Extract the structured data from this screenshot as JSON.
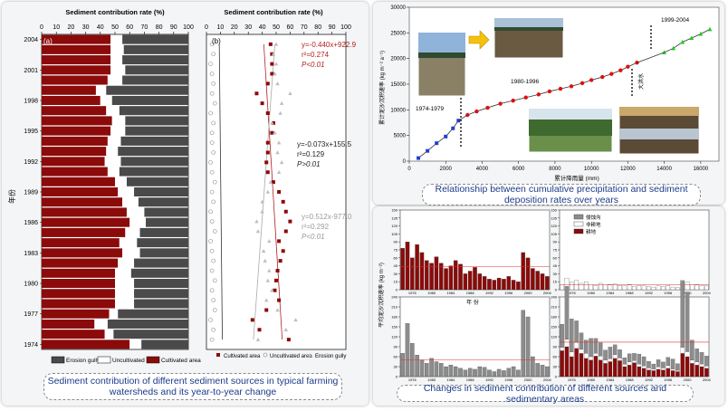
{
  "left_figure": {
    "caption": "Sediment contribution of different sediment sources in typical farming watersheds and its year-to-year change",
    "panel_a": {
      "label": "(a)",
      "x_title": "Sediment contribution rate (%)"
    },
    "panel_b": {
      "label": "(b)",
      "x_title": "Sediment contribution rate (%)"
    },
    "y_axis_label": "年份",
    "legend_a": [
      "Erosion gully",
      "Uncultivated area",
      "Cultivated area"
    ],
    "legend_b": [
      "Cultivated area",
      "Uncultivated area",
      "Erosion gully"
    ],
    "eq_cultivated": [
      "y=-0.440x+922.9",
      "r²=0.274",
      "P<0.01"
    ],
    "eq_uncultivated": [
      "y=-0.073x+155.5",
      "r²=0.129",
      "P>0.01"
    ],
    "eq_gully": [
      "y=0.512x-977.0",
      "r²=0.292",
      "P<0.01"
    ]
  },
  "top_right_figure": {
    "caption": "Relationship between cumulative precipitation and sediment deposition rates over years",
    "period_labels": [
      "1974-1979",
      "1980-1996",
      "1999-2004"
    ],
    "x_axis_label": "累计降雨量 (mm)",
    "y_axis_label": "累计泥沙沉积速率 (kg m⁻² a⁻¹)",
    "side_label": "大洪水"
  },
  "bottom_right_figure": {
    "caption": "Changes in sediment contribution of different sources and sedimentary areas",
    "x_axis_label": "年 份",
    "y_axis_label": "平均泥沙沉积速率 (kg m⁻²)",
    "legend": [
      "侵蚀沟",
      "非耕地",
      "耕地"
    ]
  },
  "colors": {
    "cultivated": "#8b0a0a",
    "gully": "#4a4a4a",
    "uncultivated": "#ffffff",
    "caption_text": "#1a3a8a",
    "blue_series": "#1f3fd0",
    "red_series": "#e01010",
    "green_series": "#22c422"
  },
  "chart_data": [
    {
      "type": "bar",
      "stacked": true,
      "orientation": "horizontal",
      "title": "",
      "xlabel": "Sediment contribution rate (%)",
      "ylabel": "年份",
      "xlim": [
        0,
        100
      ],
      "x_ticks": [
        0,
        10,
        20,
        30,
        40,
        50,
        60,
        70,
        80,
        90,
        100
      ],
      "categories": [
        "1974",
        "1975",
        "1976",
        "1977",
        "1978",
        "1979",
        "1980",
        "1981",
        "1982",
        "1983",
        "1984",
        "1985",
        "1986",
        "1987",
        "1988",
        "1989",
        "1990",
        "1991",
        "1992",
        "1993",
        "1994",
        "1995",
        "1996",
        "1997",
        "1998",
        "1999",
        "2000",
        "2001",
        "2002",
        "2003",
        "2004"
      ],
      "y_tick_labels": [
        "1974",
        "1977",
        "1980",
        "1983",
        "1986",
        "1989",
        "1992",
        "1995",
        "1998",
        "2001",
        "2004"
      ],
      "series": [
        {
          "name": "Cultivated area",
          "values": [
            60,
            43,
            36,
            46,
            50,
            50,
            50,
            50,
            52,
            55,
            53,
            57,
            60,
            58,
            55,
            52,
            50,
            45,
            43,
            44,
            45,
            47,
            48,
            44,
            40,
            37,
            45,
            47,
            47,
            47,
            47
          ]
        },
        {
          "name": "Uncultivated area",
          "values": [
            8,
            6,
            9,
            6,
            13,
            13,
            13,
            11,
            11,
            12,
            12,
            10,
            11,
            12,
            11,
            11,
            8,
            8,
            11,
            8,
            9,
            10,
            9,
            9,
            8,
            7,
            10,
            10,
            8,
            9,
            8
          ]
        },
        {
          "name": "Erosion gully",
          "values": [
            32,
            51,
            55,
            48,
            37,
            37,
            37,
            39,
            37,
            33,
            35,
            33,
            29,
            30,
            34,
            37,
            42,
            47,
            46,
            48,
            46,
            43,
            43,
            47,
            52,
            56,
            45,
            43,
            45,
            44,
            45
          ]
        }
      ]
    },
    {
      "type": "scatter",
      "title": "",
      "xlabel": "Sediment contribution rate (%)",
      "xlim": [
        0,
        100
      ],
      "ylim": [
        1973,
        2005
      ],
      "series": [
        {
          "name": "Cultivated area",
          "trend": "y=-0.440x+922.9",
          "points": [
            [
              59,
              1974
            ],
            [
              38,
              1975
            ],
            [
              33,
              1976
            ],
            [
              43,
              1977
            ],
            [
              52,
              1978
            ],
            [
              49,
              1979
            ],
            [
              50,
              1980
            ],
            [
              51,
              1981
            ],
            [
              53,
              1982
            ],
            [
              55,
              1983
            ],
            [
              52,
              1984
            ],
            [
              57,
              1985
            ],
            [
              60,
              1986
            ],
            [
              57,
              1987
            ],
            [
              55,
              1988
            ],
            [
              52,
              1989
            ],
            [
              48,
              1990
            ],
            [
              44,
              1991
            ],
            [
              43,
              1992
            ],
            [
              44,
              1993
            ],
            [
              44,
              1994
            ],
            [
              47,
              1995
            ],
            [
              48,
              1996
            ],
            [
              44,
              1997
            ],
            [
              40,
              1998
            ],
            [
              36,
              1999
            ],
            [
              44,
              2000
            ],
            [
              47,
              2001
            ],
            [
              47,
              2002
            ],
            [
              47,
              2003
            ],
            [
              46,
              2004
            ]
          ]
        },
        {
          "name": "Uncultivated area",
          "trend": "y=-0.073x+155.5",
          "points": [
            [
              4,
              1974
            ],
            [
              5,
              1975
            ],
            [
              3,
              1976
            ],
            [
              6,
              1977
            ],
            [
              5,
              1978
            ],
            [
              4,
              1979
            ],
            [
              6,
              1980
            ],
            [
              4,
              1981
            ],
            [
              5,
              1982
            ],
            [
              4,
              1983
            ],
            [
              3,
              1984
            ],
            [
              6,
              1985
            ],
            [
              4,
              1986
            ],
            [
              3,
              1987
            ],
            [
              5,
              1988
            ],
            [
              4,
              1989
            ],
            [
              6,
              1990
            ],
            [
              4,
              1991
            ],
            [
              3,
              1992
            ],
            [
              5,
              1993
            ],
            [
              4,
              1994
            ],
            [
              4,
              1995
            ],
            [
              5,
              1996
            ],
            [
              3,
              1997
            ],
            [
              6,
              1998
            ],
            [
              4,
              1999
            ],
            [
              5,
              2000
            ],
            [
              4,
              2001
            ],
            [
              3,
              2002
            ],
            [
              5,
              2003
            ],
            [
              4,
              2004
            ]
          ]
        },
        {
          "name": "Erosion gully",
          "trend": "y=0.512x-977.0",
          "points": [
            [
              37,
              1974
            ],
            [
              57,
              1975
            ],
            [
              64,
              1976
            ],
            [
              51,
              1977
            ],
            [
              43,
              1978
            ],
            [
              47,
              1979
            ],
            [
              44,
              1980
            ],
            [
              45,
              1981
            ],
            [
              42,
              1982
            ],
            [
              41,
              1983
            ],
            [
              45,
              1984
            ],
            [
              37,
              1985
            ],
            [
              36,
              1986
            ],
            [
              40,
              1987
            ],
            [
              40,
              1988
            ],
            [
              44,
              1989
            ],
            [
              46,
              1990
            ],
            [
              52,
              1991
            ],
            [
              54,
              1992
            ],
            [
              51,
              1993
            ],
            [
              52,
              1994
            ],
            [
              49,
              1995
            ],
            [
              47,
              1996
            ],
            [
              53,
              1997
            ],
            [
              54,
              1998
            ],
            [
              60,
              1999
            ],
            [
              51,
              2000
            ],
            [
              49,
              2001
            ],
            [
              50,
              2002
            ],
            [
              48,
              2003
            ],
            [
              50,
              2004
            ]
          ]
        }
      ]
    },
    {
      "type": "scatter",
      "title": "",
      "xlabel": "累计降雨量 (mm)",
      "ylabel": "累计泥沙沉积速率 (kg m⁻² a⁻¹)",
      "xlim": [
        0,
        17000
      ],
      "ylim": [
        0,
        30000
      ],
      "x_ticks": [
        0,
        2000,
        4000,
        6000,
        8000,
        10000,
        12000,
        14000,
        16000
      ],
      "y_ticks": [
        0,
        5000,
        10000,
        15000,
        20000,
        25000,
        30000
      ],
      "series": [
        {
          "name": "1974-1979",
          "color": "#1f3fd0",
          "points": [
            [
              500,
              600
            ],
            [
              1000,
              2000
            ],
            [
              1500,
              3500
            ],
            [
              2000,
              4800
            ],
            [
              2400,
              6400
            ],
            [
              2700,
              7900
            ]
          ]
        },
        {
          "name": "1980-1996",
          "color": "#e01010",
          "points": [
            [
              3200,
              9000
            ],
            [
              3700,
              9700
            ],
            [
              4300,
              10400
            ],
            [
              5000,
              11200
            ],
            [
              5700,
              11800
            ],
            [
              6400,
              12400
            ],
            [
              7100,
              13000
            ],
            [
              7700,
              13600
            ],
            [
              8300,
              14100
            ],
            [
              8900,
              14600
            ],
            [
              9500,
              15200
            ],
            [
              10000,
              15800
            ],
            [
              10600,
              16400
            ],
            [
              11100,
              17000
            ],
            [
              11600,
              17700
            ],
            [
              12000,
              18400
            ],
            [
              12500,
              19200
            ]
          ]
        },
        {
          "name": "1999-2004",
          "color": "#22c422",
          "points": [
            [
              14000,
              21200
            ],
            [
              14500,
              22000
            ],
            [
              15000,
              23200
            ],
            [
              15500,
              24000
            ],
            [
              16000,
              24800
            ],
            [
              16500,
              25700
            ]
          ]
        }
      ]
    },
    {
      "type": "bar",
      "title": "",
      "xlabel": "年 份",
      "ylabel": "平均泥沙沉积速率 (kg m⁻²)",
      "categories": [
        "1974",
        "1975",
        "1976",
        "1977",
        "1978",
        "1979",
        "1980",
        "1981",
        "1982",
        "1983",
        "1984",
        "1985",
        "1986",
        "1987",
        "1988",
        "1989",
        "1990",
        "1991",
        "1992",
        "1993",
        "1994",
        "1995",
        "1996",
        "1997",
        "1998",
        "1999",
        "2000",
        "2001",
        "2002",
        "2003",
        "2004"
      ],
      "x_tick_labels": [
        "1976",
        "1980",
        "1984",
        "1988",
        "1992",
        "1996",
        "2000",
        "2004"
      ],
      "panels": [
        {
          "name": "耕地",
          "ylim": [
            0,
            150
          ],
          "y_ticks": [
            0,
            15,
            30,
            45,
            60,
            75,
            90,
            105,
            120,
            135,
            150
          ],
          "values": [
            78,
            90,
            60,
            85,
            70,
            55,
            50,
            62,
            50,
            40,
            45,
            55,
            48,
            30,
            35,
            42,
            30,
            25,
            20,
            18,
            22,
            20,
            25,
            18,
            15,
            70,
            60,
            40,
            35,
            30,
            25
          ]
        },
        {
          "name": "非耕地",
          "ylim": [
            0,
            150
          ],
          "y_ticks": [
            0,
            15,
            30,
            45,
            60,
            75,
            90,
            105,
            120,
            135,
            150
          ],
          "values": [
            10,
            22,
            14,
            18,
            12,
            15,
            10,
            8,
            12,
            10,
            9,
            11,
            8,
            7,
            9,
            6,
            8,
            7,
            6,
            5,
            7,
            6,
            8,
            5,
            4,
            18,
            15,
            10,
            9,
            8,
            7
          ]
        },
        {
          "name": "侵蚀沟",
          "ylim": [
            0,
            240
          ],
          "y_ticks": [
            0,
            30,
            60,
            90,
            120,
            150,
            180,
            210,
            240
          ],
          "values": [
            70,
            160,
            100,
            65,
            50,
            40,
            55,
            45,
            40,
            30,
            35,
            30,
            25,
            20,
            25,
            22,
            30,
            28,
            20,
            15,
            22,
            18,
            25,
            30,
            20,
            200,
            180,
            60,
            40,
            35,
            30
          ]
        },
        {
          "name": "total",
          "ylim": [
            0,
            240
          ],
          "y_ticks": [
            0,
            30,
            60,
            90,
            120,
            150,
            180,
            210,
            240
          ],
          "series": [
            {
              "name": "耕地",
              "values": [
                78,
                90,
                60,
                85,
                70,
                55,
                50,
                62,
                50,
                40,
                45,
                55,
                48,
                30,
                35,
                42,
                30,
                25,
                20,
                18,
                22,
                20,
                25,
                18,
                15,
                70,
                60,
                40,
                35,
                30,
                25
              ]
            },
            {
              "name": "非耕地",
              "values": [
                10,
                22,
                14,
                18,
                12,
                15,
                10,
                8,
                12,
                10,
                9,
                11,
                8,
                7,
                9,
                6,
                8,
                7,
                6,
                5,
                7,
                6,
                8,
                5,
                4,
                18,
                15,
                10,
                9,
                8,
                7
              ]
            },
            {
              "name": "侵蚀沟",
              "values": [
                70,
                160,
                100,
                65,
                50,
                40,
                55,
                45,
                40,
                30,
                35,
                30,
                25,
                20,
                25,
                22,
                30,
                28,
                20,
                15,
                22,
                18,
                25,
                30,
                20,
                200,
                180,
                60,
                40,
                35,
                30
              ]
            }
          ]
        }
      ]
    }
  ]
}
